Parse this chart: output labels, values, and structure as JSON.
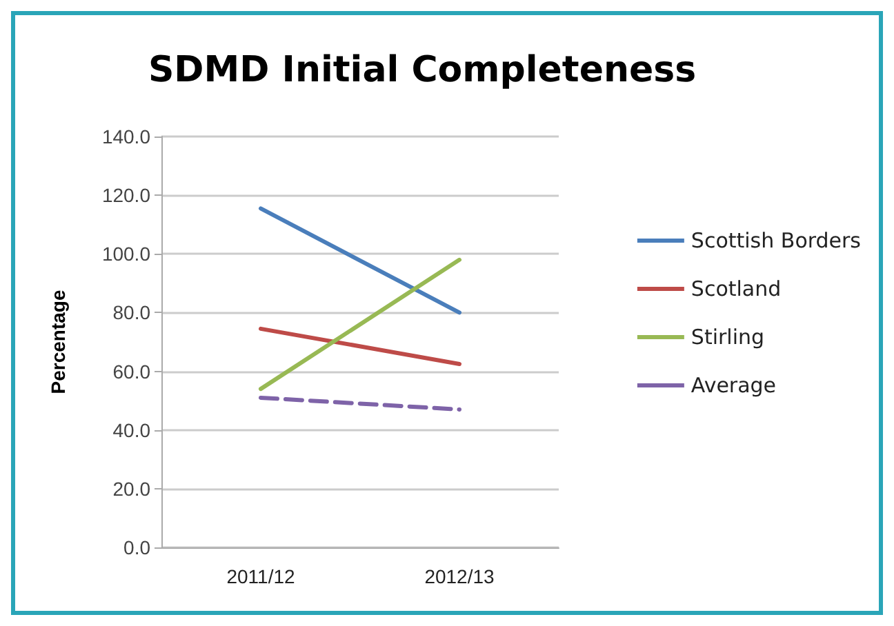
{
  "chart_data": {
    "type": "line",
    "title": "SDMD Initial Completeness",
    "ylabel": "Percentage",
    "categories": [
      "2011/12",
      "2012/13"
    ],
    "series": [
      {
        "name": "Scottish Borders",
        "color": "#4a7ebb",
        "values": [
          115.5,
          80
        ]
      },
      {
        "name": "Scotland",
        "color": "#be4b48",
        "values": [
          74.5,
          62.5
        ]
      },
      {
        "name": "Stirling",
        "color": "#98b954",
        "values": [
          54,
          98
        ]
      },
      {
        "name": "Average",
        "color": "#7e63a8",
        "values": [
          51,
          47
        ],
        "line_style": "dashed"
      }
    ],
    "ylim": [
      0,
      140
    ],
    "yticks": [
      {
        "value": 0,
        "label": "0.0"
      },
      {
        "value": 20,
        "label": "20.0"
      },
      {
        "value": 40,
        "label": "40.0"
      },
      {
        "value": 60,
        "label": "60.0"
      },
      {
        "value": 80,
        "label": "80.0"
      },
      {
        "value": 100,
        "label": "100.0"
      },
      {
        "value": 120,
        "label": "120.0"
      },
      {
        "value": 140,
        "label": "140.0"
      }
    ],
    "grid": "y",
    "legend": "right",
    "marker": "none",
    "line_style": "solid"
  }
}
